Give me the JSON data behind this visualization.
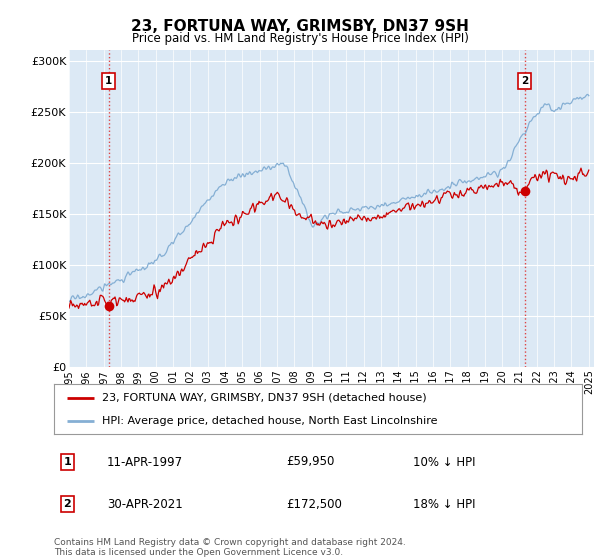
{
  "title": "23, FORTUNA WAY, GRIMSBY, DN37 9SH",
  "subtitle": "Price paid vs. HM Land Registry's House Price Index (HPI)",
  "bg_color": "#dce9f5",
  "plot_bg_color": "#dce9f5",
  "fig_bg_color": "#ffffff",
  "ylim": [
    0,
    310000
  ],
  "yticks": [
    0,
    50000,
    100000,
    150000,
    200000,
    250000,
    300000
  ],
  "ytick_labels": [
    "£0",
    "£50K",
    "£100K",
    "£150K",
    "£200K",
    "£250K",
    "£300K"
  ],
  "red_line_color": "#cc0000",
  "blue_line_color": "#85afd4",
  "marker_color": "#cc0000",
  "dashed_line_color": "#dd4444",
  "sale1_year": 1997.28,
  "sale1_price": 59950,
  "sale1_label": "1",
  "sale2_year": 2021.3,
  "sale2_price": 172500,
  "sale2_label": "2",
  "legend1_label": "23, FORTUNA WAY, GRIMSBY, DN37 9SH (detached house)",
  "legend2_label": "HPI: Average price, detached house, North East Lincolnshire",
  "footnote": "Contains HM Land Registry data © Crown copyright and database right 2024.\nThis data is licensed under the Open Government Licence v3.0.",
  "table_rows": [
    [
      "1",
      "11-APR-1997",
      "£59,950",
      "10% ↓ HPI"
    ],
    [
      "2",
      "30-APR-2021",
      "£172,500",
      "18% ↓ HPI"
    ]
  ]
}
